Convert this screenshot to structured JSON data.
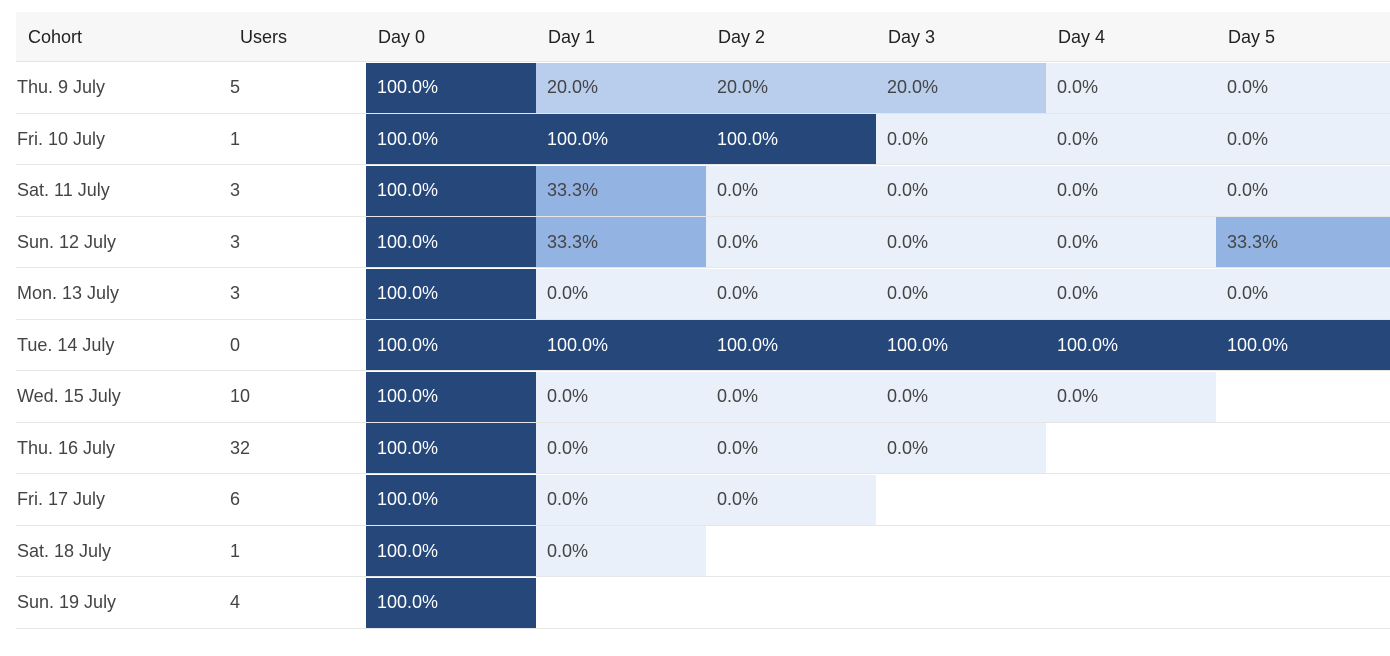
{
  "table": {
    "header": [
      "Cohort",
      "Users",
      "Day 0",
      "Day 1",
      "Day 2",
      "Day 3",
      "Day 4",
      "Day 5"
    ],
    "rows": [
      {
        "cohort": "Thu. 9 July",
        "users": 5,
        "cells": [
          "100.0%",
          "20.0%",
          "20.0%",
          "20.0%",
          "0.0%",
          "0.0%"
        ]
      },
      {
        "cohort": "Fri. 10 July",
        "users": 1,
        "cells": [
          "100.0%",
          "100.0%",
          "100.0%",
          "0.0%",
          "0.0%",
          "0.0%"
        ]
      },
      {
        "cohort": "Sat. 11 July",
        "users": 3,
        "cells": [
          "100.0%",
          "33.3%",
          "0.0%",
          "0.0%",
          "0.0%",
          "0.0%"
        ]
      },
      {
        "cohort": "Sun. 12 July",
        "users": 3,
        "cells": [
          "100.0%",
          "33.3%",
          "0.0%",
          "0.0%",
          "0.0%",
          "33.3%"
        ]
      },
      {
        "cohort": "Mon. 13 July",
        "users": 3,
        "cells": [
          "100.0%",
          "0.0%",
          "0.0%",
          "0.0%",
          "0.0%",
          "0.0%"
        ]
      },
      {
        "cohort": "Tue. 14 July",
        "users": 0,
        "cells": [
          "100.0%",
          "100.0%",
          "100.0%",
          "100.0%",
          "100.0%",
          "100.0%"
        ]
      },
      {
        "cohort": "Wed. 15 July",
        "users": 10,
        "cells": [
          "100.0%",
          "0.0%",
          "0.0%",
          "0.0%",
          "0.0%"
        ]
      },
      {
        "cohort": "Thu. 16 July",
        "users": 32,
        "cells": [
          "100.0%",
          "0.0%",
          "0.0%",
          "0.0%"
        ]
      },
      {
        "cohort": "Fri. 17 July",
        "users": 6,
        "cells": [
          "100.0%",
          "0.0%",
          "0.0%"
        ]
      },
      {
        "cohort": "Sat. 18 July",
        "users": 1,
        "cells": [
          "100.0%",
          "0.0%"
        ]
      },
      {
        "cohort": "Sun. 19 July",
        "users": 4,
        "cells": [
          "100.0%"
        ]
      }
    ]
  }
}
